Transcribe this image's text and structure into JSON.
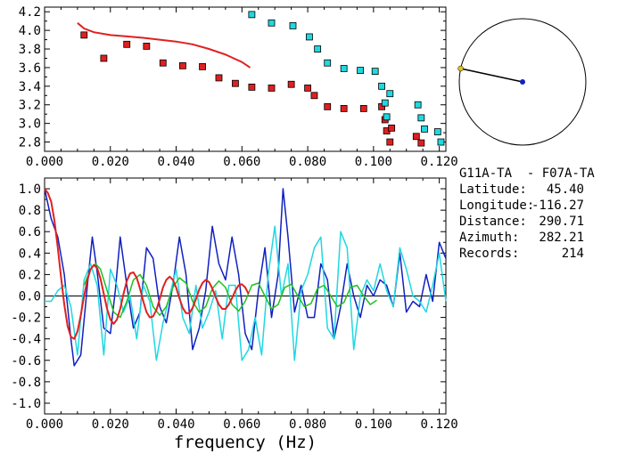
{
  "chart_data": [
    {
      "type": "scatter",
      "xlim": [
        0.0,
        0.122
      ],
      "ylim": [
        2.7,
        4.25
      ],
      "x_ticks": [
        "0.000",
        "0.020",
        "0.040",
        "0.060",
        "0.080",
        "0.100",
        "0.120"
      ],
      "y_ticks": [
        "2.8",
        "3.0",
        "3.2",
        "3.4",
        "3.6",
        "3.8",
        "4.0",
        "4.2"
      ],
      "series": [
        {
          "kind": "line",
          "color": "#e02020",
          "x": [
            0.01,
            0.012,
            0.015,
            0.02,
            0.025,
            0.03,
            0.035,
            0.04,
            0.045,
            0.05,
            0.055,
            0.06,
            0.0625
          ],
          "y": [
            4.08,
            4.02,
            3.98,
            3.95,
            3.935,
            3.92,
            3.9,
            3.88,
            3.85,
            3.8,
            3.74,
            3.66,
            3.6
          ]
        },
        {
          "kind": "markers",
          "color": "#e02020",
          "x": [
            0.012,
            0.018,
            0.025,
            0.031,
            0.036,
            0.042,
            0.048,
            0.053,
            0.058,
            0.063,
            0.069,
            0.075,
            0.08,
            0.082,
            0.086,
            0.091,
            0.097,
            0.1025,
            0.1035,
            0.104,
            0.105,
            0.1055,
            0.113,
            0.1145
          ],
          "y": [
            3.95,
            3.7,
            3.85,
            3.83,
            3.65,
            3.62,
            3.61,
            3.49,
            3.43,
            3.39,
            3.38,
            3.42,
            3.38,
            3.3,
            3.18,
            3.16,
            3.16,
            3.18,
            3.04,
            2.92,
            2.8,
            2.95,
            2.86,
            2.79
          ]
        },
        {
          "kind": "markers",
          "color": "#20d8e0",
          "x": [
            0.063,
            0.069,
            0.0755,
            0.0805,
            0.083,
            0.086,
            0.091,
            0.096,
            0.1005,
            0.1025,
            0.1035,
            0.104,
            0.105,
            0.1135,
            0.1145,
            0.1155,
            0.1195,
            0.1205
          ],
          "y": [
            4.17,
            4.08,
            4.05,
            3.93,
            3.8,
            3.65,
            3.59,
            3.57,
            3.56,
            3.4,
            3.22,
            3.07,
            3.32,
            3.2,
            3.06,
            2.94,
            2.91,
            2.8
          ]
        }
      ]
    },
    {
      "type": "line",
      "xlabel": "frequency (Hz)",
      "xlim": [
        0.0,
        0.122
      ],
      "ylim": [
        -1.1,
        1.1
      ],
      "x_ticks": [
        "0.000",
        "0.020",
        "0.040",
        "0.060",
        "0.080",
        "0.100",
        "0.120"
      ],
      "y_ticks": [
        "1.0",
        "0.8",
        "0.6",
        "0.4",
        "0.2",
        "0.0",
        "-0.2",
        "-0.4",
        "-0.6",
        "-0.8",
        "-1.0"
      ],
      "series": [
        {
          "color": "#1020c0",
          "x": [
            0.0,
            0.002,
            0.004,
            0.006,
            0.008,
            0.009,
            0.011,
            0.013,
            0.0145,
            0.016,
            0.018,
            0.02,
            0.0215,
            0.023,
            0.025,
            0.027,
            0.029,
            0.031,
            0.033,
            0.035,
            0.037,
            0.039,
            0.041,
            0.043,
            0.045,
            0.047,
            0.049,
            0.051,
            0.053,
            0.055,
            0.057,
            0.059,
            0.061,
            0.063,
            0.065,
            0.067,
            0.069,
            0.071,
            0.0725,
            0.074,
            0.076,
            0.078,
            0.08,
            0.082,
            0.084,
            0.086,
            0.088,
            0.09,
            0.092,
            0.094,
            0.096,
            0.098,
            0.1,
            0.102,
            0.104,
            0.106,
            0.108,
            0.11,
            0.112,
            0.114,
            0.116,
            0.118,
            0.12,
            0.122
          ],
          "y": [
            1.0,
            0.72,
            0.55,
            0.2,
            -0.4,
            -0.65,
            -0.55,
            0.1,
            0.55,
            0.22,
            -0.3,
            -0.35,
            0.05,
            0.55,
            0.1,
            -0.3,
            -0.15,
            0.45,
            0.35,
            -0.1,
            -0.25,
            0.1,
            0.55,
            0.2,
            -0.5,
            -0.3,
            0.05,
            0.65,
            0.3,
            0.15,
            0.55,
            0.2,
            -0.35,
            -0.5,
            0.05,
            0.45,
            -0.2,
            0.2,
            1.0,
            0.55,
            -0.15,
            0.1,
            -0.2,
            -0.2,
            0.3,
            0.15,
            -0.4,
            -0.1,
            0.3,
            0.0,
            -0.2,
            0.1,
            0.0,
            0.15,
            0.1,
            -0.1,
            0.4,
            -0.15,
            -0.05,
            -0.1,
            0.2,
            -0.05,
            0.5,
            0.35
          ]
        },
        {
          "color": "#20d8e0",
          "x": [
            0.0,
            0.002,
            0.004,
            0.006,
            0.008,
            0.01,
            0.012,
            0.014,
            0.016,
            0.018,
            0.02,
            0.022,
            0.024,
            0.026,
            0.028,
            0.03,
            0.032,
            0.034,
            0.036,
            0.038,
            0.04,
            0.042,
            0.044,
            0.046,
            0.048,
            0.05,
            0.052,
            0.054,
            0.056,
            0.058,
            0.06,
            0.062,
            0.064,
            0.066,
            0.068,
            0.07,
            0.072,
            0.074,
            0.076,
            0.078,
            0.08,
            0.082,
            0.084,
            0.086,
            0.088,
            0.09,
            0.092,
            0.094,
            0.096,
            0.098,
            0.1,
            0.102,
            0.104,
            0.106,
            0.108,
            0.11,
            0.112,
            0.114,
            0.116,
            0.118,
            0.12,
            0.122
          ],
          "y": [
            -0.05,
            -0.05,
            0.05,
            0.1,
            -0.1,
            -0.55,
            0.15,
            0.3,
            0.1,
            -0.55,
            0.25,
            0.1,
            -0.15,
            0.0,
            -0.4,
            0.1,
            -0.05,
            -0.6,
            -0.25,
            0.0,
            0.25,
            -0.2,
            -0.35,
            0.1,
            -0.3,
            -0.15,
            0.05,
            -0.4,
            0.1,
            0.1,
            -0.6,
            -0.5,
            -0.2,
            -0.55,
            0.2,
            0.65,
            0.0,
            0.3,
            -0.6,
            0.05,
            0.2,
            0.45,
            0.55,
            -0.3,
            -0.4,
            0.6,
            0.45,
            -0.5,
            0.0,
            0.15,
            0.05,
            0.3,
            0.05,
            -0.1,
            0.45,
            0.25,
            0.0,
            -0.05,
            -0.15,
            0.1,
            0.4,
            -0.05
          ]
        },
        {
          "color": "#20c020",
          "x": [
            0.012,
            0.014,
            0.0155,
            0.017,
            0.019,
            0.021,
            0.023,
            0.025,
            0.027,
            0.029,
            0.031,
            0.033,
            0.035,
            0.037,
            0.039,
            0.041,
            0.043,
            0.045,
            0.047,
            0.049,
            0.051,
            0.053,
            0.055,
            0.057,
            0.059,
            0.061,
            0.063,
            0.065,
            0.067,
            0.069,
            0.071,
            0.073,
            0.075,
            0.077,
            0.079,
            0.081,
            0.083,
            0.085,
            0.087,
            0.089,
            0.091,
            0.093,
            0.095,
            0.097,
            0.099,
            0.101
          ],
          "y": [
            0.1,
            0.25,
            0.3,
            0.25,
            0.05,
            -0.15,
            -0.2,
            -0.05,
            0.15,
            0.2,
            0.1,
            -0.1,
            -0.18,
            -0.1,
            0.08,
            0.17,
            0.12,
            -0.05,
            -0.15,
            -0.1,
            0.07,
            0.14,
            0.08,
            -0.08,
            -0.14,
            -0.05,
            0.1,
            0.12,
            0.0,
            -0.12,
            -0.08,
            0.08,
            0.11,
            0.0,
            -0.1,
            -0.07,
            0.07,
            0.1,
            0.0,
            -0.1,
            -0.06,
            0.08,
            0.1,
            0.0,
            -0.08,
            -0.04
          ]
        },
        {
          "color": "#e02020",
          "x": [
            0.0,
            0.001,
            0.002,
            0.003,
            0.004,
            0.005,
            0.006,
            0.007,
            0.008,
            0.009,
            0.01,
            0.011,
            0.012,
            0.013,
            0.014,
            0.015,
            0.016,
            0.017,
            0.018,
            0.019,
            0.02,
            0.021,
            0.022,
            0.023,
            0.024,
            0.025,
            0.026,
            0.027,
            0.028,
            0.029,
            0.03,
            0.031,
            0.032,
            0.033,
            0.034,
            0.035,
            0.036,
            0.037,
            0.038,
            0.039,
            0.04,
            0.041,
            0.042,
            0.043,
            0.044,
            0.045,
            0.046,
            0.047,
            0.048,
            0.049,
            0.05,
            0.051,
            0.052,
            0.053,
            0.054,
            0.055,
            0.056,
            0.057,
            0.058,
            0.059,
            0.06,
            0.061,
            0.062
          ],
          "y": [
            1.0,
            0.96,
            0.88,
            0.7,
            0.45,
            0.18,
            -0.08,
            -0.28,
            -0.38,
            -0.4,
            -0.33,
            -0.18,
            0.0,
            0.15,
            0.25,
            0.29,
            0.26,
            0.16,
            0.02,
            -0.12,
            -0.22,
            -0.26,
            -0.22,
            -0.12,
            0.02,
            0.14,
            0.21,
            0.22,
            0.17,
            0.07,
            -0.05,
            -0.15,
            -0.2,
            -0.19,
            -0.13,
            -0.03,
            0.08,
            0.15,
            0.18,
            0.15,
            0.08,
            -0.02,
            -0.11,
            -0.16,
            -0.16,
            -0.11,
            -0.03,
            0.06,
            0.12,
            0.15,
            0.13,
            0.07,
            -0.01,
            -0.08,
            -0.12,
            -0.12,
            -0.08,
            -0.02,
            0.05,
            0.1,
            0.11,
            0.08,
            0.02
          ]
        }
      ]
    }
  ],
  "info": {
    "station_pair": "G11A-TA  - F07A-TA",
    "rows": [
      {
        "label": "Latitude:",
        "value": "45.40"
      },
      {
        "label": "Longitude:",
        "value": "-116.27"
      },
      {
        "label": "Distance:",
        "value": "290.71"
      },
      {
        "label": "Azimuth:",
        "value": "282.21"
      },
      {
        "label": "Records:",
        "value": "214"
      }
    ]
  },
  "azimuth_map": {
    "azimuth_deg": 282.21,
    "circle_color": "#000000",
    "center_color": "#1020c0",
    "edge_color": "#e0c020"
  }
}
